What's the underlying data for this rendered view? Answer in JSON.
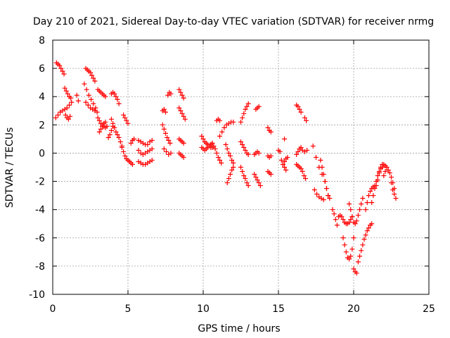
{
  "chart_data": {
    "type": "scatter",
    "title": "Day 210 of 2021, Sidereal Day-to-day VTEC variation (SDTVAR) for receiver nrmg",
    "xlabel": "GPS time / hours",
    "ylabel": "SDTVAR / TECUs",
    "xlim": [
      0,
      25
    ],
    "ylim": [
      -10,
      8
    ],
    "xticks": [
      0,
      5,
      10,
      15,
      20,
      25
    ],
    "yticks": [
      -10,
      -8,
      -6,
      -4,
      -2,
      0,
      2,
      4,
      6,
      8
    ],
    "grid": true,
    "marker": "+",
    "color": "#ff0000",
    "series": [
      {
        "name": "t1",
        "x": [
          0.25,
          0.35,
          0.45,
          0.55,
          0.65,
          0.75
        ],
        "y": [
          6.4,
          6.3,
          6.2,
          6.0,
          5.8,
          5.6
        ]
      },
      {
        "name": "t2",
        "x": [
          0.2,
          0.35,
          0.5,
          0.65,
          0.8,
          0.95,
          1.1,
          1.25
        ],
        "y": [
          2.5,
          2.7,
          2.9,
          3.0,
          3.1,
          3.2,
          3.4,
          3.6
        ]
      },
      {
        "name": "t3",
        "x": [
          0.8,
          0.9,
          1.0,
          1.1,
          1.2
        ],
        "y": [
          4.6,
          4.4,
          4.2,
          4.0,
          3.9
        ]
      },
      {
        "name": "t4",
        "x": [
          0.85,
          0.95,
          1.05,
          1.15
        ],
        "y": [
          2.7,
          2.5,
          2.4,
          2.6
        ]
      },
      {
        "name": "t5",
        "x": [
          1.6,
          1.7
        ],
        "y": [
          4.1,
          3.7
        ]
      },
      {
        "name": "t6",
        "x": [
          2.2,
          2.3,
          2.4,
          2.5,
          2.6,
          2.7,
          2.8
        ],
        "y": [
          6.0,
          5.9,
          5.8,
          5.7,
          5.5,
          5.3,
          5.1
        ]
      },
      {
        "name": "t7",
        "x": [
          2.1,
          2.25,
          2.4,
          2.55,
          2.7,
          2.85
        ],
        "y": [
          4.9,
          4.5,
          4.1,
          3.8,
          3.5,
          3.2
        ]
      },
      {
        "name": "t8",
        "x": [
          2.2,
          2.35,
          2.5,
          2.65,
          2.8,
          2.95
        ],
        "y": [
          3.6,
          3.4,
          3.2,
          3.1,
          3.0,
          2.9
        ]
      },
      {
        "name": "t9",
        "x": [
          3.0,
          3.1,
          3.2,
          3.3,
          3.4,
          3.5
        ],
        "y": [
          4.5,
          4.4,
          4.3,
          4.2,
          4.1,
          4.0
        ]
      },
      {
        "name": "t10",
        "x": [
          3.0,
          3.1,
          3.2,
          3.3,
          3.4,
          3.5,
          3.6
        ],
        "y": [
          2.5,
          2.3,
          2.1,
          2.0,
          1.9,
          1.8,
          1.9
        ]
      },
      {
        "name": "t11",
        "x": [
          3.1,
          3.2,
          3.3,
          3.4,
          3.5
        ],
        "y": [
          1.5,
          1.7,
          1.9,
          2.1,
          2.2
        ]
      },
      {
        "name": "t12",
        "x": [
          3.9,
          4.0,
          4.1,
          4.2,
          4.3,
          4.4
        ],
        "y": [
          4.2,
          4.3,
          4.2,
          4.0,
          3.8,
          3.5
        ]
      },
      {
        "name": "t13",
        "x": [
          3.9,
          4.0,
          4.1,
          4.2,
          4.3,
          4.4,
          4.5,
          4.6
        ],
        "y": [
          2.4,
          2.1,
          1.8,
          1.5,
          1.3,
          1.1,
          0.8,
          0.5
        ]
      },
      {
        "name": "t14",
        "x": [
          3.7,
          3.8,
          3.9,
          4.0
        ],
        "y": [
          1.1,
          1.3,
          1.6,
          1.9
        ]
      },
      {
        "name": "t15",
        "x": [
          4.7,
          4.8,
          4.9,
          5.0
        ],
        "y": [
          2.7,
          2.5,
          2.3,
          2.1
        ]
      },
      {
        "name": "t16",
        "x": [
          4.6,
          4.7,
          4.8,
          4.9,
          5.0,
          5.1,
          5.2,
          5.3
        ],
        "y": [
          0.4,
          0.1,
          -0.2,
          -0.4,
          -0.5,
          -0.6,
          -0.7,
          -0.8
        ]
      },
      {
        "name": "t17",
        "x": [
          5.2,
          5.3,
          5.4
        ],
        "y": [
          0.7,
          0.9,
          1.0
        ]
      },
      {
        "name": "t18",
        "x": [
          5.7,
          5.85,
          6.0,
          6.15,
          6.3,
          6.45,
          6.6
        ],
        "y": [
          0.9,
          0.8,
          0.7,
          0.6,
          0.6,
          0.8,
          0.9
        ]
      },
      {
        "name": "t19",
        "x": [
          5.7,
          5.85,
          6.0,
          6.15,
          6.3,
          6.45,
          6.6
        ],
        "y": [
          0.2,
          0.0,
          -0.1,
          0.0,
          0.1,
          0.2,
          0.3
        ]
      },
      {
        "name": "t20",
        "x": [
          5.7,
          5.85,
          6.0,
          6.15,
          6.3,
          6.45,
          6.6
        ],
        "y": [
          -0.6,
          -0.7,
          -0.8,
          -0.8,
          -0.7,
          -0.6,
          -0.5
        ]
      },
      {
        "name": "t21",
        "x": [
          7.3,
          7.4,
          7.5
        ],
        "y": [
          3.0,
          3.1,
          2.9
        ]
      },
      {
        "name": "t22",
        "x": [
          7.3,
          7.4,
          7.5,
          7.6,
          7.7,
          7.8
        ],
        "y": [
          2.0,
          1.7,
          1.4,
          1.1,
          0.9,
          0.7
        ]
      },
      {
        "name": "t23",
        "x": [
          7.4,
          7.55,
          7.7,
          7.85
        ],
        "y": [
          0.3,
          0.1,
          -0.1,
          0.0
        ]
      },
      {
        "name": "t24",
        "x": [
          7.65,
          7.75,
          7.85
        ],
        "y": [
          4.1,
          4.3,
          4.2
        ]
      },
      {
        "name": "t25",
        "x": [
          8.4,
          8.5,
          8.6,
          8.7
        ],
        "y": [
          4.5,
          4.3,
          4.1,
          3.9
        ]
      },
      {
        "name": "t26",
        "x": [
          8.4,
          8.5,
          8.6,
          8.7,
          8.8
        ],
        "y": [
          3.2,
          3.0,
          2.8,
          2.6,
          2.4
        ]
      },
      {
        "name": "t27",
        "x": [
          8.4,
          8.5,
          8.6,
          8.7
        ],
        "y": [
          1.0,
          0.9,
          0.8,
          0.7
        ]
      },
      {
        "name": "t28",
        "x": [
          8.4,
          8.5,
          8.6,
          8.7
        ],
        "y": [
          0.0,
          -0.1,
          -0.2,
          -0.3
        ]
      },
      {
        "name": "t29",
        "x": [
          9.9,
          10.0,
          10.1,
          10.2,
          10.3,
          10.4,
          10.5,
          10.6
        ],
        "y": [
          1.2,
          1.0,
          0.8,
          0.7,
          0.6,
          0.5,
          0.4,
          0.4
        ]
      },
      {
        "name": "t30",
        "x": [
          9.9,
          10.0,
          10.1,
          10.2,
          10.3,
          10.4,
          10.5,
          10.6
        ],
        "y": [
          0.4,
          0.3,
          0.2,
          0.3,
          0.4,
          0.5,
          0.6,
          0.7
        ]
      },
      {
        "name": "t31",
        "x": [
          10.6,
          10.7,
          10.8,
          10.9,
          11.0,
          11.1,
          11.2
        ],
        "y": [
          0.7,
          0.5,
          0.3,
          0.0,
          -0.3,
          -0.5,
          -0.7
        ]
      },
      {
        "name": "t32",
        "x": [
          11.1,
          11.25,
          11.4,
          11.55,
          11.7,
          11.85,
          12.0
        ],
        "y": [
          1.2,
          1.5,
          1.8,
          2.0,
          2.1,
          2.2,
          2.2
        ]
      },
      {
        "name": "t33",
        "x": [
          11.5,
          11.6,
          11.7,
          11.8,
          11.9,
          12.0
        ],
        "y": [
          0.6,
          0.3,
          0.0,
          -0.2,
          -0.5,
          -0.7
        ]
      },
      {
        "name": "t34",
        "x": [
          11.6,
          11.7,
          11.8,
          11.9,
          12.0
        ],
        "y": [
          -2.1,
          -1.8,
          -1.5,
          -1.2,
          -1.0
        ]
      },
      {
        "name": "t35",
        "x": [
          10.9,
          11.0,
          11.1
        ],
        "y": [
          2.3,
          2.4,
          2.3
        ]
      },
      {
        "name": "t36",
        "x": [
          12.5,
          12.6,
          12.7,
          12.8,
          12.9,
          13.0
        ],
        "y": [
          2.2,
          2.5,
          2.8,
          3.1,
          3.3,
          3.5
        ]
      },
      {
        "name": "t37",
        "x": [
          12.5,
          12.6,
          12.7,
          12.8,
          12.9,
          13.0
        ],
        "y": [
          0.8,
          0.6,
          0.4,
          0.2,
          0.0,
          -0.1
        ]
      },
      {
        "name": "t38",
        "x": [
          12.5,
          12.6,
          12.7,
          12.8,
          12.9,
          13.0
        ],
        "y": [
          -1.0,
          -1.3,
          -1.6,
          -1.8,
          -2.1,
          -2.3
        ]
      },
      {
        "name": "t39",
        "x": [
          13.5,
          13.6,
          13.7
        ],
        "y": [
          3.1,
          3.2,
          3.3
        ]
      },
      {
        "name": "t40",
        "x": [
          13.4,
          13.5,
          13.6,
          13.7
        ],
        "y": [
          -0.1,
          0.0,
          0.1,
          0.0
        ]
      },
      {
        "name": "t41",
        "x": [
          13.4,
          13.5,
          13.6,
          13.7,
          13.8
        ],
        "y": [
          -1.5,
          -1.7,
          -1.9,
          -2.1,
          -2.3
        ]
      },
      {
        "name": "t42",
        "x": [
          14.3,
          14.4,
          14.5
        ],
        "y": [
          1.8,
          1.6,
          1.5
        ]
      },
      {
        "name": "t43",
        "x": [
          14.3,
          14.4,
          14.5
        ],
        "y": [
          -0.2,
          -0.3,
          -0.2
        ]
      },
      {
        "name": "t44",
        "x": [
          14.3,
          14.4,
          14.5
        ],
        "y": [
          -1.3,
          -1.4,
          -1.5
        ]
      },
      {
        "name": "t45",
        "x": [
          15.0,
          15.1,
          15.2,
          15.3,
          15.4,
          15.5
        ],
        "y": [
          0.2,
          0.1,
          -0.5,
          -0.8,
          -1.0,
          -1.2
        ]
      },
      {
        "name": "t46",
        "x": [
          15.3,
          15.4,
          15.5,
          15.6
        ],
        "y": [
          -0.8,
          -0.6,
          -0.4,
          -0.3
        ]
      },
      {
        "name": "t47",
        "x": [
          15.4
        ],
        "y": [
          1.0
        ]
      },
      {
        "name": "t48",
        "x": [
          16.2,
          16.3,
          16.4,
          16.5
        ],
        "y": [
          3.4,
          3.3,
          3.1,
          2.9
        ]
      },
      {
        "name": "t49",
        "x": [
          16.2,
          16.3,
          16.4,
          16.5
        ],
        "y": [
          -0.1,
          0.1,
          0.3,
          0.4
        ]
      },
      {
        "name": "t50",
        "x": [
          16.2,
          16.3,
          16.4,
          16.5,
          16.6,
          16.7,
          16.8
        ],
        "y": [
          -0.8,
          -0.9,
          -1.0,
          -1.1,
          -1.3,
          -1.6,
          -1.8
        ]
      },
      {
        "name": "t51",
        "x": [
          16.75,
          16.85
        ],
        "y": [
          2.5,
          2.3
        ]
      },
      {
        "name": "t52",
        "x": [
          16.6,
          16.75,
          16.9
        ],
        "y": [
          0.2,
          0.1,
          0.2
        ]
      },
      {
        "name": "t53",
        "x": [
          17.3,
          17.5,
          17.7,
          17.9
        ],
        "y": [
          0.5,
          -0.3,
          -1.0,
          -1.5
        ]
      },
      {
        "name": "t54",
        "x": [
          17.4,
          17.55,
          17.7,
          17.85,
          18.0
        ],
        "y": [
          -2.6,
          -2.9,
          -3.1,
          -3.2,
          -3.3
        ]
      },
      {
        "name": "t55",
        "x": [
          17.8,
          17.9,
          18.0,
          18.1,
          18.2,
          18.3
        ],
        "y": [
          -0.5,
          -1.0,
          -1.5,
          -2.0,
          -2.5,
          -3.0
        ]
      },
      {
        "name": "t56",
        "x": [
          18.1,
          18.2,
          18.3,
          18.4
        ],
        "y": [
          -2.0,
          -2.5,
          -3.0,
          -3.2
        ]
      },
      {
        "name": "t57",
        "x": [
          18.6,
          18.7,
          18.8,
          18.9
        ],
        "y": [
          -4.0,
          -4.3,
          -4.7,
          -5.1
        ]
      },
      {
        "name": "t58",
        "x": [
          19.0,
          19.1,
          19.2,
          19.3,
          19.4,
          19.5,
          19.6,
          19.7,
          19.8,
          19.9
        ],
        "y": [
          -4.5,
          -4.4,
          -4.5,
          -4.7,
          -4.9,
          -5.0,
          -5.0,
          -4.9,
          -4.7,
          -4.5
        ]
      },
      {
        "name": "t59",
        "x": [
          19.3,
          19.4,
          19.5,
          19.6,
          19.7,
          19.8,
          19.9,
          20.0
        ],
        "y": [
          -6.0,
          -6.5,
          -7.0,
          -7.4,
          -7.5,
          -7.3,
          -6.8,
          -6.0
        ]
      },
      {
        "name": "t60",
        "x": [
          19.7,
          19.8,
          19.9,
          20.0,
          20.1,
          20.2,
          20.3,
          20.4,
          20.5,
          20.6
        ],
        "y": [
          -3.6,
          -4.0,
          -4.5,
          -4.9,
          -5.0,
          -4.8,
          -4.4,
          -4.0,
          -3.6,
          -3.2
        ]
      },
      {
        "name": "t61",
        "x": [
          20.0,
          20.1,
          20.2
        ],
        "y": [
          -8.2,
          -8.4,
          -8.5
        ]
      },
      {
        "name": "t62",
        "x": [
          20.3,
          20.4,
          20.5,
          20.6,
          20.7,
          20.8,
          20.9,
          21.0,
          21.1,
          21.2
        ],
        "y": [
          -7.7,
          -7.3,
          -6.9,
          -6.5,
          -6.1,
          -5.8,
          -5.5,
          -5.3,
          -5.1,
          -5.0
        ]
      },
      {
        "name": "t63",
        "x": [
          20.8,
          20.9,
          21.0,
          21.1,
          21.2,
          21.3,
          21.4,
          21.5
        ],
        "y": [
          -4.0,
          -3.5,
          -3.0,
          -2.7,
          -2.5,
          -2.4,
          -2.3,
          -2.3
        ]
      },
      {
        "name": "t64",
        "x": [
          21.2,
          21.3,
          21.4,
          21.5,
          21.6,
          21.7,
          21.8,
          21.9
        ],
        "y": [
          -3.5,
          -3.0,
          -2.5,
          -2.0,
          -1.6,
          -1.3,
          -1.1,
          -1.0
        ]
      },
      {
        "name": "t65",
        "x": [
          21.6,
          21.7,
          21.8,
          21.9,
          22.0,
          22.1
        ],
        "y": [
          -1.9,
          -1.4,
          -1.0,
          -0.8,
          -0.8,
          -0.9
        ]
      },
      {
        "name": "t66",
        "x": [
          22.2,
          22.3,
          22.4,
          22.5,
          22.6,
          22.7
        ],
        "y": [
          -1.0,
          -1.2,
          -1.4,
          -1.7,
          -2.1,
          -2.5
        ]
      },
      {
        "name": "t67",
        "x": [
          22.5,
          22.6,
          22.7,
          22.8
        ],
        "y": [
          -2.1,
          -2.6,
          -2.9,
          -3.2
        ]
      },
      {
        "name": "t68",
        "x": [
          22.0,
          22.1
        ],
        "y": [
          -1.6,
          -1.3
        ]
      }
    ]
  }
}
